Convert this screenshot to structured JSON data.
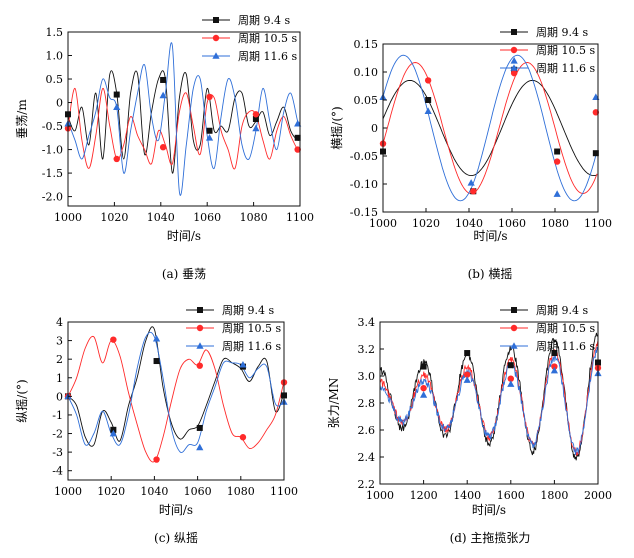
{
  "figure": {
    "background": "#ffffff",
    "colors": {
      "s1": "#111111",
      "s2": "#ff2a2a",
      "s3": "#2f6fd8"
    }
  },
  "chart_data": [
    {
      "id": "a",
      "type": "line",
      "caption": "(a) 垂荡",
      "xlabel": "时间/s",
      "ylabel": "垂荡/m",
      "xlim": [
        1000,
        1100
      ],
      "ylim": [
        -2.2,
        1.5
      ],
      "xticks": [
        1000,
        1020,
        1040,
        1060,
        1080,
        1100
      ],
      "yticks": [
        -2.0,
        -1.5,
        -1.0,
        -0.5,
        0,
        0.5,
        1.0,
        1.5
      ],
      "ytick_labels": [
        "-2.0",
        "-1.5",
        "-1.0",
        "-0.5",
        "0",
        "0.5",
        "1.0",
        "1.5"
      ],
      "legend_position": "top-right",
      "series": [
        {
          "name": "周期 9.4 s",
          "marker": "square",
          "x": [
            1000,
            1003,
            1006,
            1009,
            1012,
            1015,
            1018,
            1021,
            1024,
            1027,
            1030,
            1033,
            1036,
            1039,
            1042,
            1045,
            1048,
            1051,
            1054,
            1057,
            1060,
            1063,
            1066,
            1069,
            1072,
            1075,
            1078,
            1081,
            1084,
            1087,
            1090,
            1093,
            1096,
            1099,
            1100
          ],
          "y": [
            -0.3,
            -0.6,
            -0.1,
            -0.9,
            0.2,
            -1.2,
            0.6,
            0.2,
            -1.2,
            0.2,
            0.6,
            -1.1,
            -0.2,
            0.5,
            0.5,
            -1.5,
            0.1,
            0.6,
            -0.8,
            -0.9,
            0.3,
            -0.6,
            -0.5,
            -0.6,
            0.1,
            0.2,
            -0.5,
            -0.4,
            -0.2,
            -0.7,
            -0.4,
            -0.1,
            -0.6,
            -0.8,
            -0.75
          ],
          "marks_x": [
            1000,
            1021,
            1041,
            1061,
            1081,
            1099
          ],
          "marks_y": [
            -0.25,
            0.17,
            0.48,
            -0.6,
            -0.35,
            -0.75
          ]
        },
        {
          "name": "周期 10.5 s",
          "marker": "circle",
          "x": [
            1000,
            1003,
            1006,
            1009,
            1012,
            1015,
            1018,
            1021,
            1024,
            1027,
            1030,
            1033,
            1036,
            1039,
            1042,
            1045,
            1048,
            1051,
            1054,
            1057,
            1060,
            1063,
            1066,
            1069,
            1072,
            1075,
            1078,
            1081,
            1084,
            1087,
            1090,
            1093,
            1096,
            1099,
            1100
          ],
          "y": [
            -0.55,
            0.3,
            -0.8,
            -1.4,
            -0.7,
            0.3,
            -0.5,
            -1.2,
            -0.9,
            -0.3,
            -0.7,
            -1.0,
            -1.3,
            -0.6,
            -0.9,
            -1.3,
            -0.2,
            0.2,
            -0.5,
            -1.1,
            0.0,
            0.1,
            -0.6,
            -1.0,
            -1.4,
            -0.5,
            -0.2,
            -0.25,
            -0.8,
            -1.2,
            -0.6,
            -0.3,
            -0.7,
            -1.0,
            -1.0
          ],
          "marks_x": [
            1000,
            1021,
            1041,
            1061,
            1081,
            1099
          ],
          "marks_y": [
            -0.55,
            -1.2,
            -0.95,
            0.12,
            -0.25,
            -1.0
          ]
        },
        {
          "name": "周期 11.6 s",
          "marker": "triangle",
          "x": [
            1000,
            1003,
            1006,
            1009,
            1012,
            1015,
            1018,
            1021,
            1024,
            1027,
            1030,
            1033,
            1036,
            1039,
            1042,
            1045,
            1048,
            1051,
            1054,
            1057,
            1060,
            1063,
            1066,
            1069,
            1072,
            1075,
            1078,
            1081,
            1084,
            1087,
            1090,
            1093,
            1096,
            1099,
            1100
          ],
          "y": [
            -0.4,
            -0.8,
            -1.2,
            -0.7,
            -0.2,
            0.5,
            0.1,
            -0.1,
            -1.5,
            -0.6,
            0.2,
            0.8,
            -0.3,
            -0.8,
            0.2,
            1.2,
            -1.9,
            -0.9,
            0.3,
            0.5,
            -0.7,
            -1.4,
            -0.3,
            0.5,
            0.1,
            -0.9,
            -1.2,
            -0.6,
            0.3,
            -0.4,
            -1.0,
            -0.2,
            0.2,
            -0.4,
            -0.4
          ],
          "marks_x": [
            1000,
            1021,
            1041,
            1061,
            1081,
            1099
          ],
          "marks_y": [
            -0.45,
            -0.1,
            0.15,
            -0.75,
            -0.55,
            -0.45
          ]
        }
      ]
    },
    {
      "id": "b",
      "type": "line",
      "caption": "(b) 横摇",
      "xlabel": "时间/s",
      "ylabel": "横摇/(°)",
      "xlim": [
        1000,
        1100
      ],
      "ylim": [
        -0.15,
        0.15
      ],
      "xticks": [
        1000,
        1020,
        1040,
        1060,
        1080,
        1100
      ],
      "yticks": [
        -0.15,
        -0.1,
        -0.05,
        0,
        0.05,
        0.1,
        0.15
      ],
      "ytick_labels": [
        "-0.15",
        "-0.10",
        "-0.05",
        "0",
        "0.05",
        "0.10",
        "0.15"
      ],
      "legend_position": "top-right",
      "series": [
        {
          "name": "周期 9.4 s",
          "marker": "square",
          "func": {
            "c": 0.0,
            "A": 0.085,
            "T": 57,
            "t0": 1041,
            "phase": "min"
          },
          "marks_x": [
            1000,
            1021,
            1042,
            1061,
            1081,
            1099
          ],
          "marks_y": [
            -0.042,
            0.05,
            -0.113,
            0.104,
            -0.042,
            -0.045
          ]
        },
        {
          "name": "周期 10.5 s",
          "marker": "circle",
          "func": {
            "c": 0.0,
            "A": 0.117,
            "T": 52,
            "t0": 1041,
            "phase": "min"
          },
          "marks_x": [
            1000,
            1021,
            1042,
            1061,
            1081,
            1099
          ],
          "marks_y": [
            -0.028,
            0.085,
            -0.113,
            0.098,
            -0.06,
            0.028
          ]
        },
        {
          "name": "周期 11.6 s",
          "marker": "triangle",
          "func": {
            "c": 0.0,
            "A": 0.13,
            "T": 53,
            "t0": 1036,
            "phase": "min"
          },
          "marks_x": [
            1000,
            1021,
            1041,
            1061,
            1081,
            1099
          ],
          "marks_y": [
            0.055,
            0.03,
            -0.098,
            0.12,
            -0.118,
            0.055
          ]
        }
      ]
    },
    {
      "id": "c",
      "type": "line",
      "caption": "(c) 纵摇",
      "xlabel": "时间/s",
      "ylabel": "纵摇/(°)",
      "xlim": [
        1000,
        1100
      ],
      "ylim": [
        -4.5,
        4
      ],
      "xticks": [
        1000,
        1020,
        1040,
        1060,
        1080,
        1100
      ],
      "yticks": [
        -4,
        -3,
        -2,
        -1,
        0,
        1,
        2,
        3,
        4
      ],
      "ytick_labels": [
        "-4",
        "-3",
        "-2",
        "-1",
        "0",
        "1",
        "2",
        "3",
        "4"
      ],
      "legend_position": "top-right",
      "series": [
        {
          "name": "周期 9.4 s",
          "marker": "square",
          "x": [
            1000,
            1004,
            1008,
            1012,
            1016,
            1020,
            1024,
            1028,
            1032,
            1036,
            1040,
            1044,
            1048,
            1052,
            1056,
            1060,
            1064,
            1068,
            1072,
            1076,
            1080,
            1084,
            1088,
            1092,
            1096,
            1100
          ],
          "y": [
            0,
            -0.5,
            -2.2,
            -2.6,
            -0.8,
            -1.4,
            -2.4,
            -0.5,
            1.0,
            3.0,
            3.6,
            0.5,
            -1.5,
            -2.3,
            -1.8,
            -1.6,
            -0.5,
            0.8,
            2.0,
            1.8,
            1.5,
            0.8,
            1.6,
            1.9,
            -0.8,
            0.2
          ],
          "marks_x": [
            1000,
            1021,
            1041,
            1061,
            1081,
            1100
          ],
          "marks_y": [
            0,
            -1.8,
            1.9,
            -1.7,
            1.6,
            0.05
          ]
        },
        {
          "name": "周期 10.5 s",
          "marker": "circle",
          "x": [
            1000,
            1004,
            1008,
            1012,
            1016,
            1020,
            1024,
            1028,
            1032,
            1036,
            1040,
            1044,
            1048,
            1052,
            1056,
            1060,
            1064,
            1068,
            1072,
            1076,
            1080,
            1084,
            1088,
            1092,
            1096,
            1100
          ],
          "y": [
            0,
            1.0,
            2.6,
            3.2,
            1.8,
            3.0,
            2.2,
            0.2,
            -1.5,
            -3.0,
            -3.5,
            -2.2,
            -0.2,
            1.5,
            2.0,
            1.7,
            2.5,
            1.5,
            -0.5,
            -2.0,
            -2.2,
            -2.8,
            -2.5,
            -1.8,
            -1.0,
            0.8
          ],
          "marks_x": [
            1000,
            1021,
            1041,
            1061,
            1081,
            1100
          ],
          "marks_y": [
            0,
            3.05,
            -3.4,
            1.65,
            -2.2,
            0.75
          ]
        },
        {
          "name": "周期 11.6 s",
          "marker": "triangle",
          "x": [
            1000,
            1004,
            1008,
            1012,
            1016,
            1020,
            1024,
            1028,
            1032,
            1036,
            1040,
            1044,
            1048,
            1052,
            1056,
            1060,
            1064,
            1068,
            1072,
            1076,
            1080,
            1084,
            1088,
            1092,
            1096,
            1100
          ],
          "y": [
            0,
            -1.0,
            -2.6,
            -2.0,
            -0.8,
            -2.0,
            -2.6,
            -1.0,
            1.5,
            3.2,
            3.2,
            1.0,
            -1.8,
            -3.0,
            -2.6,
            -2.5,
            -0.8,
            0.5,
            1.8,
            1.8,
            1.7,
            1.0,
            1.5,
            1.6,
            -0.4,
            -0.3
          ],
          "marks_x": [
            1000,
            1021,
            1041,
            1061,
            1081,
            1100
          ],
          "marks_y": [
            0,
            -2.0,
            3.1,
            -2.75,
            1.7,
            -0.3
          ]
        }
      ]
    },
    {
      "id": "d",
      "type": "line",
      "caption": "(d) 主拖揽张力",
      "xlabel": "时间/s",
      "ylabel": "张力/MN",
      "xlim": [
        1000,
        2000
      ],
      "ylim": [
        2.2,
        3.4
      ],
      "xticks": [
        1000,
        1200,
        1400,
        1600,
        1800,
        2000
      ],
      "yticks": [
        2.2,
        2.4,
        2.6,
        2.8,
        3.0,
        3.2,
        3.4
      ],
      "ytick_labels": [
        "2.2",
        "2.4",
        "2.6",
        "2.8",
        "3.0",
        "3.2",
        "3.4"
      ],
      "legend_position": "top-right",
      "series": [
        {
          "name": "周期 9.4 s",
          "marker": "square",
          "func": {
            "c": 2.84,
            "A": 0.2,
            "T": 200,
            "t0": 1000,
            "amp_grow": 0.00028,
            "noise": 0.03
          },
          "marks_x": [
            1200,
            1400,
            1600,
            1800,
            2000
          ],
          "marks_y": [
            3.07,
            3.17,
            3.08,
            3.17,
            3.1
          ]
        },
        {
          "name": "周期 10.5 s",
          "marker": "circle",
          "func": {
            "c": 2.82,
            "A": 0.13,
            "T": 200,
            "t0": 1000,
            "amp_grow": 0.00028,
            "noise": 0.03
          },
          "marks_x": [
            1200,
            1400,
            1600,
            1800,
            2000
          ],
          "marks_y": [
            2.91,
            3.01,
            2.98,
            3.07,
            3.06
          ]
        },
        {
          "name": "周期 11.6 s",
          "marker": "triangle",
          "func": {
            "c": 2.8,
            "A": 0.11,
            "T": 200,
            "t0": 1000,
            "amp_grow": 0.00028,
            "noise": 0.03
          },
          "marks_x": [
            1200,
            1400,
            1600,
            1800,
            2000
          ],
          "marks_y": [
            2.86,
            2.97,
            2.94,
            3.04,
            3.02
          ]
        }
      ]
    }
  ]
}
